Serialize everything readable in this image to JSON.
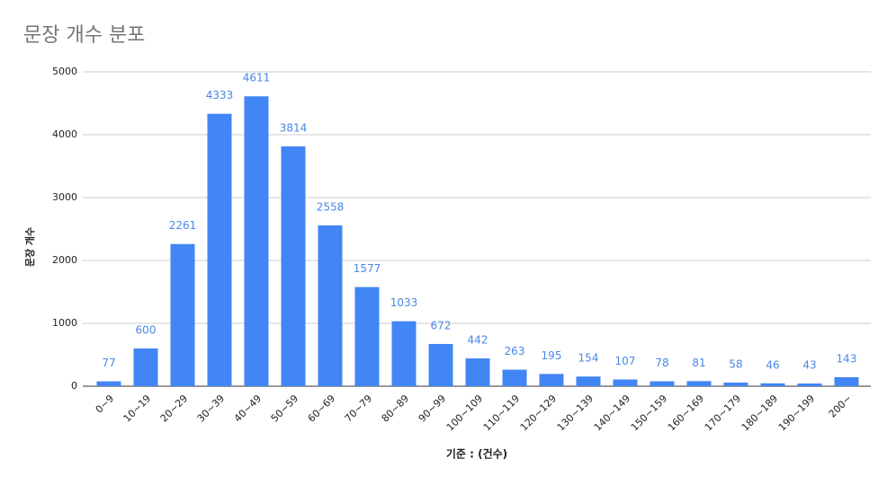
{
  "chart_data": {
    "type": "bar",
    "title": "문장 개수 분포",
    "x_label": "기준 : (건수)",
    "y_label": "문장 개수",
    "categories": [
      "0~9",
      "10~19",
      "20~29",
      "30~39",
      "40~49",
      "50~59",
      "60~69",
      "70~79",
      "80~89",
      "90~99",
      "100~109",
      "110~119",
      "120~129",
      "130~139",
      "140~149",
      "150~159",
      "160~169",
      "170~179",
      "180~189",
      "190~199",
      "200~"
    ],
    "values": [
      77,
      600,
      2261,
      4333,
      4611,
      3814,
      2558,
      1577,
      1033,
      672,
      442,
      263,
      195,
      154,
      107,
      78,
      81,
      58,
      46,
      43,
      143
    ],
    "color": "#4285f4",
    "ylim": [
      0,
      5000
    ],
    "yticks": [
      0,
      1000,
      2000,
      3000,
      4000,
      5000
    ],
    "grid": true
  }
}
